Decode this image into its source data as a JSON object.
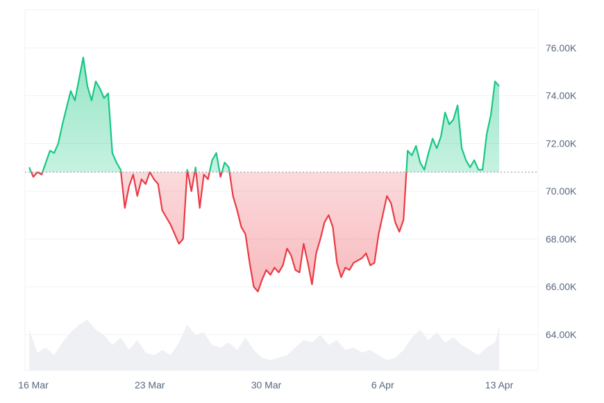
{
  "chart_data": {
    "type": "area",
    "y_axis_side": "right",
    "baseline": 70800,
    "ylim": [
      62500,
      77600
    ],
    "yticks": [
      {
        "value": 64000,
        "label": "64.00K"
      },
      {
        "value": 66000,
        "label": "66.00K"
      },
      {
        "value": 68000,
        "label": "68.00K"
      },
      {
        "value": 70000,
        "label": "70.00K"
      },
      {
        "value": 72000,
        "label": "72.00K"
      },
      {
        "value": 74000,
        "label": "74.00K"
      },
      {
        "value": 76000,
        "label": "76.00K"
      }
    ],
    "xlim": [
      "2024-03-16",
      "2024-04-14"
    ],
    "xticks": [
      {
        "date": "2024-03-16",
        "label": "16 Mar"
      },
      {
        "date": "2024-03-23",
        "label": "23 Mar"
      },
      {
        "date": "2024-03-30",
        "label": "30 Mar"
      },
      {
        "date": "2024-04-06",
        "label": "6 Apr"
      },
      {
        "date": "2024-04-13",
        "label": "13 Apr"
      }
    ],
    "colors": {
      "up": "#16c784",
      "down": "#ea3943",
      "volume": "#eef0f3",
      "grid": "#eff2f5"
    },
    "grid": true,
    "series": [
      {
        "kind": "price",
        "points": [
          [
            "2024-03-15T18:00",
            71000
          ],
          [
            "2024-03-16T00:00",
            70600
          ],
          [
            "2024-03-16T06:00",
            70800
          ],
          [
            "2024-03-16T12:00",
            70700
          ],
          [
            "2024-03-16T18:00",
            71200
          ],
          [
            "2024-03-17T00:00",
            71700
          ],
          [
            "2024-03-17T06:00",
            71600
          ],
          [
            "2024-03-17T12:00",
            72000
          ],
          [
            "2024-03-17T18:00",
            72800
          ],
          [
            "2024-03-18T00:00",
            73500
          ],
          [
            "2024-03-18T06:00",
            74200
          ],
          [
            "2024-03-18T12:00",
            73800
          ],
          [
            "2024-03-18T18:00",
            74700
          ],
          [
            "2024-03-19T00:00",
            75600
          ],
          [
            "2024-03-19T06:00",
            74400
          ],
          [
            "2024-03-19T12:00",
            73800
          ],
          [
            "2024-03-19T18:00",
            74600
          ],
          [
            "2024-03-20T00:00",
            74300
          ],
          [
            "2024-03-20T06:00",
            73900
          ],
          [
            "2024-03-20T12:00",
            74100
          ],
          [
            "2024-03-20T18:00",
            71600
          ],
          [
            "2024-03-21T00:00",
            71200
          ],
          [
            "2024-03-21T06:00",
            70900
          ],
          [
            "2024-03-21T12:00",
            69300
          ],
          [
            "2024-03-21T18:00",
            70200
          ],
          [
            "2024-03-22T00:00",
            70700
          ],
          [
            "2024-03-22T06:00",
            69800
          ],
          [
            "2024-03-22T12:00",
            70500
          ],
          [
            "2024-03-22T18:00",
            70300
          ],
          [
            "2024-03-23T00:00",
            70800
          ],
          [
            "2024-03-23T06:00",
            70500
          ],
          [
            "2024-03-23T12:00",
            70300
          ],
          [
            "2024-03-23T18:00",
            69200
          ],
          [
            "2024-03-24T00:00",
            68900
          ],
          [
            "2024-03-24T06:00",
            68600
          ],
          [
            "2024-03-24T12:00",
            68200
          ],
          [
            "2024-03-24T18:00",
            67800
          ],
          [
            "2024-03-25T00:00",
            68000
          ],
          [
            "2024-03-25T06:00",
            70900
          ],
          [
            "2024-03-25T12:00",
            70000
          ],
          [
            "2024-03-25T18:00",
            71000
          ],
          [
            "2024-03-26T00:00",
            69300
          ],
          [
            "2024-03-26T06:00",
            70700
          ],
          [
            "2024-03-26T12:00",
            70500
          ],
          [
            "2024-03-26T18:00",
            71300
          ],
          [
            "2024-03-27T00:00",
            71600
          ],
          [
            "2024-03-27T06:00",
            70600
          ],
          [
            "2024-03-27T12:00",
            71200
          ],
          [
            "2024-03-27T18:00",
            71000
          ],
          [
            "2024-03-28T00:00",
            69800
          ],
          [
            "2024-03-28T06:00",
            69200
          ],
          [
            "2024-03-28T12:00",
            68500
          ],
          [
            "2024-03-28T18:00",
            68200
          ],
          [
            "2024-03-29T00:00",
            67000
          ],
          [
            "2024-03-29T06:00",
            66000
          ],
          [
            "2024-03-29T12:00",
            65800
          ],
          [
            "2024-03-29T18:00",
            66300
          ],
          [
            "2024-03-30T00:00",
            66700
          ],
          [
            "2024-03-30T06:00",
            66500
          ],
          [
            "2024-03-30T12:00",
            66800
          ],
          [
            "2024-03-30T18:00",
            66600
          ],
          [
            "2024-03-31T00:00",
            66900
          ],
          [
            "2024-03-31T06:00",
            67600
          ],
          [
            "2024-03-31T12:00",
            67300
          ],
          [
            "2024-03-31T18:00",
            66700
          ],
          [
            "2024-04-01T00:00",
            66600
          ],
          [
            "2024-04-01T06:00",
            67800
          ],
          [
            "2024-04-01T12:00",
            67000
          ],
          [
            "2024-04-01T18:00",
            66100
          ],
          [
            "2024-04-02T00:00",
            67400
          ],
          [
            "2024-04-02T06:00",
            68000
          ],
          [
            "2024-04-02T12:00",
            68700
          ],
          [
            "2024-04-02T18:00",
            69000
          ],
          [
            "2024-04-03T00:00",
            68500
          ],
          [
            "2024-04-03T06:00",
            67000
          ],
          [
            "2024-04-03T12:00",
            66400
          ],
          [
            "2024-04-03T18:00",
            66800
          ],
          [
            "2024-04-04T00:00",
            66700
          ],
          [
            "2024-04-04T06:00",
            67000
          ],
          [
            "2024-04-04T12:00",
            67100
          ],
          [
            "2024-04-04T18:00",
            67200
          ],
          [
            "2024-04-05T00:00",
            67400
          ],
          [
            "2024-04-05T06:00",
            66900
          ],
          [
            "2024-04-05T12:00",
            67000
          ],
          [
            "2024-04-05T18:00",
            68200
          ],
          [
            "2024-04-06T00:00",
            69000
          ],
          [
            "2024-04-06T06:00",
            69800
          ],
          [
            "2024-04-06T12:00",
            69500
          ],
          [
            "2024-04-06T18:00",
            68700
          ],
          [
            "2024-04-07T00:00",
            68300
          ],
          [
            "2024-04-07T06:00",
            68800
          ],
          [
            "2024-04-07T12:00",
            71700
          ],
          [
            "2024-04-07T18:00",
            71500
          ],
          [
            "2024-04-08T00:00",
            71900
          ],
          [
            "2024-04-08T06:00",
            71200
          ],
          [
            "2024-04-08T12:00",
            70900
          ],
          [
            "2024-04-08T18:00",
            71600
          ],
          [
            "2024-04-09T00:00",
            72200
          ],
          [
            "2024-04-09T06:00",
            71800
          ],
          [
            "2024-04-09T12:00",
            72300
          ],
          [
            "2024-04-09T18:00",
            73300
          ],
          [
            "2024-04-10T00:00",
            72800
          ],
          [
            "2024-04-10T06:00",
            73000
          ],
          [
            "2024-04-10T12:00",
            73600
          ],
          [
            "2024-04-10T18:00",
            71800
          ],
          [
            "2024-04-11T00:00",
            71300
          ],
          [
            "2024-04-11T06:00",
            71000
          ],
          [
            "2024-04-11T12:00",
            71300
          ],
          [
            "2024-04-11T18:00",
            70900
          ],
          [
            "2024-04-12T00:00",
            70900
          ],
          [
            "2024-04-12T06:00",
            72400
          ],
          [
            "2024-04-12T12:00",
            73200
          ],
          [
            "2024-04-12T18:00",
            74600
          ],
          [
            "2024-04-13T00:00",
            74400
          ]
        ]
      },
      {
        "kind": "volume",
        "scale": "relative (0-1)",
        "points": [
          [
            "2024-03-15T18:00",
            0.8
          ],
          [
            "2024-03-16T06:00",
            0.35
          ],
          [
            "2024-03-16T18:00",
            0.45
          ],
          [
            "2024-03-17T06:00",
            0.3
          ],
          [
            "2024-03-17T18:00",
            0.55
          ],
          [
            "2024-03-18T06:00",
            0.75
          ],
          [
            "2024-03-18T18:00",
            0.9
          ],
          [
            "2024-03-19T06:00",
            1.0
          ],
          [
            "2024-03-19T18:00",
            0.8
          ],
          [
            "2024-03-20T06:00",
            0.7
          ],
          [
            "2024-03-20T18:00",
            0.5
          ],
          [
            "2024-03-21T06:00",
            0.65
          ],
          [
            "2024-03-21T18:00",
            0.4
          ],
          [
            "2024-03-22T06:00",
            0.6
          ],
          [
            "2024-03-22T18:00",
            0.35
          ],
          [
            "2024-03-23T06:00",
            0.3
          ],
          [
            "2024-03-23T18:00",
            0.4
          ],
          [
            "2024-03-24T06:00",
            0.3
          ],
          [
            "2024-03-24T18:00",
            0.55
          ],
          [
            "2024-03-25T06:00",
            0.9
          ],
          [
            "2024-03-25T18:00",
            0.7
          ],
          [
            "2024-03-26T06:00",
            0.75
          ],
          [
            "2024-03-26T18:00",
            0.5
          ],
          [
            "2024-03-27T06:00",
            0.45
          ],
          [
            "2024-03-27T18:00",
            0.55
          ],
          [
            "2024-03-28T06:00",
            0.4
          ],
          [
            "2024-03-28T18:00",
            0.65
          ],
          [
            "2024-03-29T06:00",
            0.4
          ],
          [
            "2024-03-29T18:00",
            0.25
          ],
          [
            "2024-03-30T06:00",
            0.2
          ],
          [
            "2024-03-30T18:00",
            0.25
          ],
          [
            "2024-03-31T06:00",
            0.3
          ],
          [
            "2024-03-31T18:00",
            0.45
          ],
          [
            "2024-04-01T06:00",
            0.6
          ],
          [
            "2024-04-01T18:00",
            0.55
          ],
          [
            "2024-04-02T06:00",
            0.7
          ],
          [
            "2024-04-02T18:00",
            0.5
          ],
          [
            "2024-04-03T06:00",
            0.6
          ],
          [
            "2024-04-03T18:00",
            0.4
          ],
          [
            "2024-04-04T06:00",
            0.45
          ],
          [
            "2024-04-04T18:00",
            0.35
          ],
          [
            "2024-04-05T06:00",
            0.4
          ],
          [
            "2024-04-05T18:00",
            0.3
          ],
          [
            "2024-04-06T06:00",
            0.2
          ],
          [
            "2024-04-06T18:00",
            0.25
          ],
          [
            "2024-04-07T06:00",
            0.4
          ],
          [
            "2024-04-07T18:00",
            0.65
          ],
          [
            "2024-04-08T06:00",
            0.8
          ],
          [
            "2024-04-08T18:00",
            0.6
          ],
          [
            "2024-04-09T06:00",
            0.75
          ],
          [
            "2024-04-09T18:00",
            0.55
          ],
          [
            "2024-04-10T06:00",
            0.65
          ],
          [
            "2024-04-10T18:00",
            0.5
          ],
          [
            "2024-04-11T06:00",
            0.4
          ],
          [
            "2024-04-11T18:00",
            0.3
          ],
          [
            "2024-04-12T06:00",
            0.45
          ],
          [
            "2024-04-12T18:00",
            0.55
          ],
          [
            "2024-04-13T00:00",
            0.85
          ]
        ]
      }
    ]
  }
}
